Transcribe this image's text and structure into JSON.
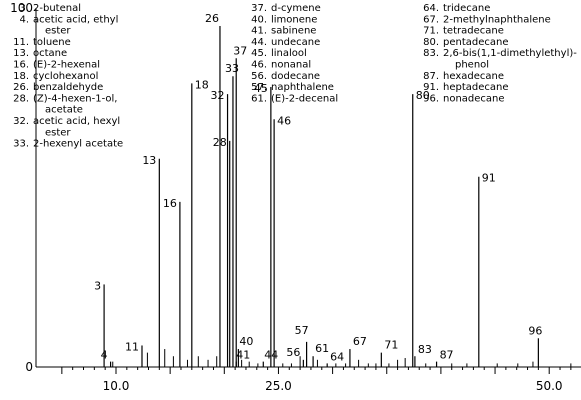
{
  "chart_data": {
    "type": "line",
    "subtype": "chromatogram",
    "xlabel": "",
    "ylabel": "",
    "xlim": [
      4.7,
      54
    ],
    "ylim": [
      0,
      100
    ],
    "y_ticks": [
      0,
      100
    ],
    "x_ticks": [
      10.0,
      25.0,
      50.0
    ],
    "x_tick_labels": [
      "10.0",
      "25.0",
      "50.0"
    ],
    "grid": false,
    "labeled_peaks": [
      {
        "label": "3",
        "x": 8.9,
        "y": 23
      },
      {
        "label": "4",
        "x": 9.5,
        "y": 1.5
      },
      {
        "label": "11",
        "x": 12.4,
        "y": 6
      },
      {
        "label": "13",
        "x": 14.0,
        "y": 58
      },
      {
        "label": "16",
        "x": 15.9,
        "y": 46
      },
      {
        "label": "18",
        "x": 17.0,
        "y": 79
      },
      {
        "label": "26",
        "x": 19.6,
        "y": 95
      },
      {
        "label": "32",
        "x": 20.3,
        "y": 76
      },
      {
        "label": "28",
        "x": 20.5,
        "y": 63
      },
      {
        "label": "33",
        "x": 20.8,
        "y": 81
      },
      {
        "label": "37",
        "x": 21.1,
        "y": 86
      },
      {
        "label": "40",
        "x": 21.3,
        "y": 5
      },
      {
        "label": "41",
        "x": 21.1,
        "y": 1.5
      },
      {
        "label": "44",
        "x": 23.6,
        "y": 1.5
      },
      {
        "label": "45",
        "x": 24.3,
        "y": 78
      },
      {
        "label": "46",
        "x": 24.6,
        "y": 69
      },
      {
        "label": "56",
        "x": 27.3,
        "y": 2
      },
      {
        "label": "57",
        "x": 27.6,
        "y": 7
      },
      {
        "label": "61",
        "x": 28.2,
        "y": 3
      },
      {
        "label": "64",
        "x": 29.5,
        "y": 1
      },
      {
        "label": "67",
        "x": 31.6,
        "y": 5
      },
      {
        "label": "71",
        "x": 34.5,
        "y": 4
      },
      {
        "label": "80",
        "x": 37.4,
        "y": 76
      },
      {
        "label": "83",
        "x": 37.6,
        "y": 3
      },
      {
        "label": "87",
        "x": 39.6,
        "y": 1.5
      },
      {
        "label": "91",
        "x": 43.5,
        "y": 53
      },
      {
        "label": "96",
        "x": 49.0,
        "y": 8
      }
    ],
    "minor_peaks": [
      {
        "x": 9.7,
        "y": 1.5
      },
      {
        "x": 12.9,
        "y": 4
      },
      {
        "x": 14.5,
        "y": 5
      },
      {
        "x": 15.3,
        "y": 3
      },
      {
        "x": 16.6,
        "y": 2
      },
      {
        "x": 17.6,
        "y": 3
      },
      {
        "x": 18.5,
        "y": 2
      },
      {
        "x": 19.3,
        "y": 3
      },
      {
        "x": 21.6,
        "y": 2
      },
      {
        "x": 22.3,
        "y": 1.5
      },
      {
        "x": 23.1,
        "y": 1
      },
      {
        "x": 25.4,
        "y": 1
      },
      {
        "x": 26.2,
        "y": 1
      },
      {
        "x": 27.0,
        "y": 3
      },
      {
        "x": 28.6,
        "y": 2
      },
      {
        "x": 30.3,
        "y": 1
      },
      {
        "x": 31.2,
        "y": 1
      },
      {
        "x": 32.4,
        "y": 2
      },
      {
        "x": 33.3,
        "y": 1
      },
      {
        "x": 34.0,
        "y": 1
      },
      {
        "x": 35.2,
        "y": 1
      },
      {
        "x": 36.0,
        "y": 2
      },
      {
        "x": 36.7,
        "y": 2.5
      },
      {
        "x": 38.6,
        "y": 1
      },
      {
        "x": 41.0,
        "y": 1
      },
      {
        "x": 42.4,
        "y": 1
      },
      {
        "x": 45.2,
        "y": 1
      },
      {
        "x": 47.1,
        "y": 1
      },
      {
        "x": 48.5,
        "y": 1.5
      },
      {
        "x": 52.0,
        "y": 1
      }
    ],
    "legend": [
      {
        "group": 0,
        "lines": [
          "3. 2-butenal"
        ]
      },
      {
        "group": 0,
        "lines": [
          "4. acetic acid, ethyl",
          "ester"
        ]
      },
      {
        "group": 0,
        "lines": [
          "11. toluene"
        ]
      },
      {
        "group": 0,
        "lines": [
          "13. octane"
        ]
      },
      {
        "group": 0,
        "lines": [
          "16. (E)-2-hexenal"
        ]
      },
      {
        "group": 0,
        "lines": [
          "18. cyclohexanol"
        ]
      },
      {
        "group": 0,
        "lines": [
          "26. benzaldehyde"
        ]
      },
      {
        "group": 0,
        "lines": [
          "28. (Z)-4-hexen-1-ol,",
          "acetate"
        ]
      },
      {
        "group": 0,
        "lines": [
          "32. acetic acid, hexyl",
          "ester"
        ]
      },
      {
        "group": 0,
        "lines": [
          "33. 2-hexenyl acetate"
        ]
      },
      {
        "group": 1,
        "lines": [
          "37. d-cymene"
        ]
      },
      {
        "group": 1,
        "lines": [
          "40. limonene"
        ]
      },
      {
        "group": 1,
        "lines": [
          "41. sabinene"
        ]
      },
      {
        "group": 1,
        "lines": [
          "44. undecane"
        ]
      },
      {
        "group": 1,
        "lines": [
          "45. linalool"
        ]
      },
      {
        "group": 1,
        "lines": [
          "46. nonanal"
        ]
      },
      {
        "group": 1,
        "lines": [
          "56. dodecane"
        ]
      },
      {
        "group": 1,
        "lines": [
          "57. naphthalene"
        ]
      },
      {
        "group": 1,
        "lines": [
          "61. (E)-2-decenal"
        ]
      },
      {
        "group": 2,
        "lines": [
          "64. tridecane"
        ]
      },
      {
        "group": 2,
        "lines": [
          "67. 2-methylnaphthalene"
        ]
      },
      {
        "group": 2,
        "lines": [
          "71. tetradecane"
        ]
      },
      {
        "group": 2,
        "lines": [
          "80. pentadecane"
        ]
      },
      {
        "group": 2,
        "lines": [
          "83. 2,6-bis(1,1-dimethylethyl)-",
          "phenol"
        ]
      },
      {
        "group": 2,
        "lines": [
          "87. hexadecane"
        ]
      },
      {
        "group": 2,
        "lines": [
          "91. heptadecane"
        ]
      },
      {
        "group": 2,
        "lines": [
          "96. nonadecane"
        ]
      }
    ]
  }
}
